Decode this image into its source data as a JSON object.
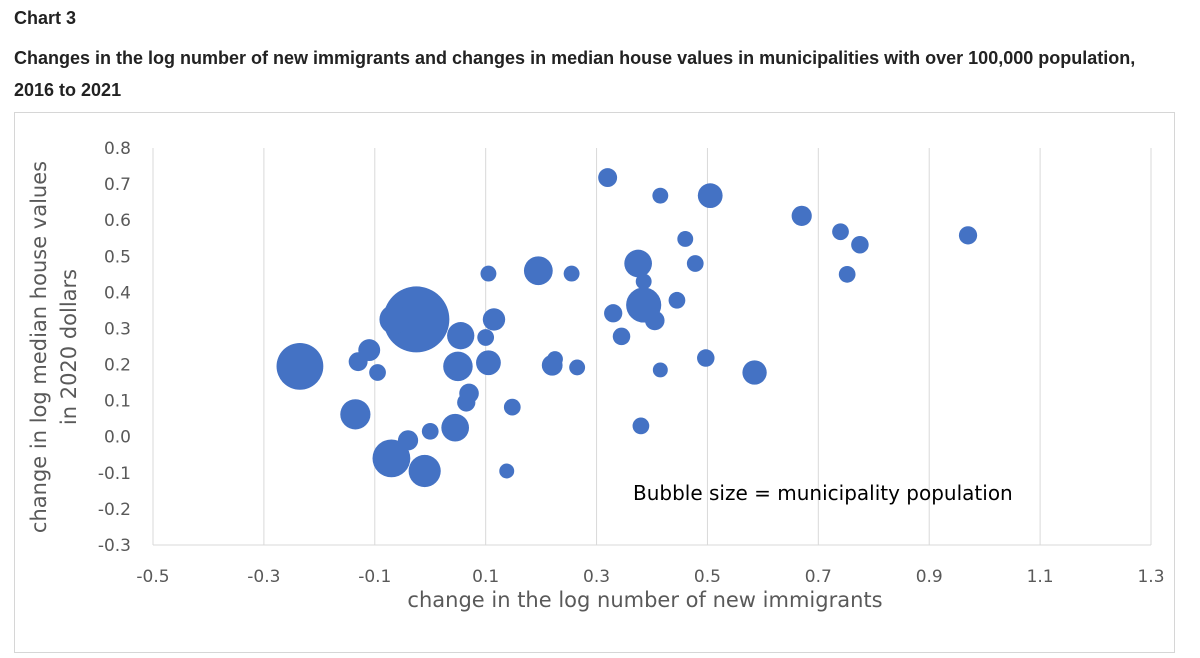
{
  "header": {
    "chart_number": "Chart 3",
    "title": "Changes in the log number of new immigrants and changes in median house values in municipalities with over 100,000 population, 2016 to 2021"
  },
  "chart_data": {
    "type": "scatter",
    "subtype": "bubble",
    "xlabel": "change in the log number of new immigrants",
    "ylabel_lines": [
      "change in log median house values",
      "in 2020 dollars"
    ],
    "annotation": "Bubble size = municipality population",
    "xlim": [
      -0.5,
      1.3
    ],
    "ylim": [
      -0.3,
      0.8
    ],
    "x_ticks": [
      "-0.5",
      "-0.3",
      "-0.1",
      "0.1",
      "0.3",
      "0.5",
      "0.7",
      "0.9",
      "1.1",
      "1.3"
    ],
    "y_ticks": [
      "0.8",
      "0.7",
      "0.6",
      "0.5",
      "0.4",
      "0.3",
      "0.2",
      "0.1",
      "0.0",
      "-0.1",
      "-0.2",
      "-0.3"
    ],
    "grid": "vertical",
    "legend": "none",
    "bubble_color": "#4472C4",
    "bubble_size_unit": "relative municipality population",
    "points": [
      {
        "x": -0.235,
        "y": 0.195,
        "size": 100
      },
      {
        "x": -0.025,
        "y": 0.325,
        "size": 220
      },
      {
        "x": -0.07,
        "y": -0.06,
        "size": 60
      },
      {
        "x": -0.01,
        "y": -0.095,
        "size": 40
      },
      {
        "x": -0.135,
        "y": 0.062,
        "size": 34
      },
      {
        "x": -0.065,
        "y": 0.325,
        "size": 32
      },
      {
        "x": 0.045,
        "y": 0.025,
        "size": 27
      },
      {
        "x": 0.05,
        "y": 0.195,
        "size": 32
      },
      {
        "x": 0.055,
        "y": 0.28,
        "size": 26
      },
      {
        "x": 0.105,
        "y": 0.205,
        "size": 20
      },
      {
        "x": 0.115,
        "y": 0.325,
        "size": 15
      },
      {
        "x": 0.195,
        "y": 0.46,
        "size": 30
      },
      {
        "x": 0.385,
        "y": 0.365,
        "size": 50
      },
      {
        "x": 0.375,
        "y": 0.48,
        "size": 27
      },
      {
        "x": 0.585,
        "y": 0.178,
        "size": 19
      },
      {
        "x": 0.505,
        "y": 0.668,
        "size": 20
      },
      {
        "x": 0.32,
        "y": 0.718,
        "size": 9
      },
      {
        "x": 0.67,
        "y": 0.612,
        "size": 11
      },
      {
        "x": 0.97,
        "y": 0.558,
        "size": 8
      },
      {
        "x": -0.11,
        "y": 0.24,
        "size": 14
      },
      {
        "x": -0.13,
        "y": 0.208,
        "size": 9
      },
      {
        "x": -0.095,
        "y": 0.178,
        "size": 6
      },
      {
        "x": -0.04,
        "y": -0.01,
        "size": 11
      },
      {
        "x": 0.0,
        "y": 0.015,
        "size": 6
      },
      {
        "x": 0.07,
        "y": 0.12,
        "size": 10
      },
      {
        "x": 0.065,
        "y": 0.095,
        "size": 8
      },
      {
        "x": 0.1,
        "y": 0.275,
        "size": 6
      },
      {
        "x": 0.105,
        "y": 0.452,
        "size": 5
      },
      {
        "x": 0.148,
        "y": 0.082,
        "size": 6
      },
      {
        "x": 0.138,
        "y": -0.095,
        "size": 4
      },
      {
        "x": 0.22,
        "y": 0.198,
        "size": 12
      },
      {
        "x": 0.225,
        "y": 0.215,
        "size": 5
      },
      {
        "x": 0.255,
        "y": 0.452,
        "size": 5
      },
      {
        "x": 0.265,
        "y": 0.192,
        "size": 5
      },
      {
        "x": 0.33,
        "y": 0.342,
        "size": 8
      },
      {
        "x": 0.345,
        "y": 0.278,
        "size": 7
      },
      {
        "x": 0.38,
        "y": 0.03,
        "size": 6
      },
      {
        "x": 0.385,
        "y": 0.43,
        "size": 5
      },
      {
        "x": 0.405,
        "y": 0.322,
        "size": 10
      },
      {
        "x": 0.415,
        "y": 0.185,
        "size": 4
      },
      {
        "x": 0.415,
        "y": 0.668,
        "size": 5
      },
      {
        "x": 0.445,
        "y": 0.378,
        "size": 6
      },
      {
        "x": 0.46,
        "y": 0.548,
        "size": 5
      },
      {
        "x": 0.478,
        "y": 0.48,
        "size": 6
      },
      {
        "x": 0.497,
        "y": 0.218,
        "size": 7
      },
      {
        "x": 0.74,
        "y": 0.568,
        "size": 6
      },
      {
        "x": 0.752,
        "y": 0.45,
        "size": 6
      },
      {
        "x": 0.775,
        "y": 0.532,
        "size": 7
      }
    ]
  }
}
